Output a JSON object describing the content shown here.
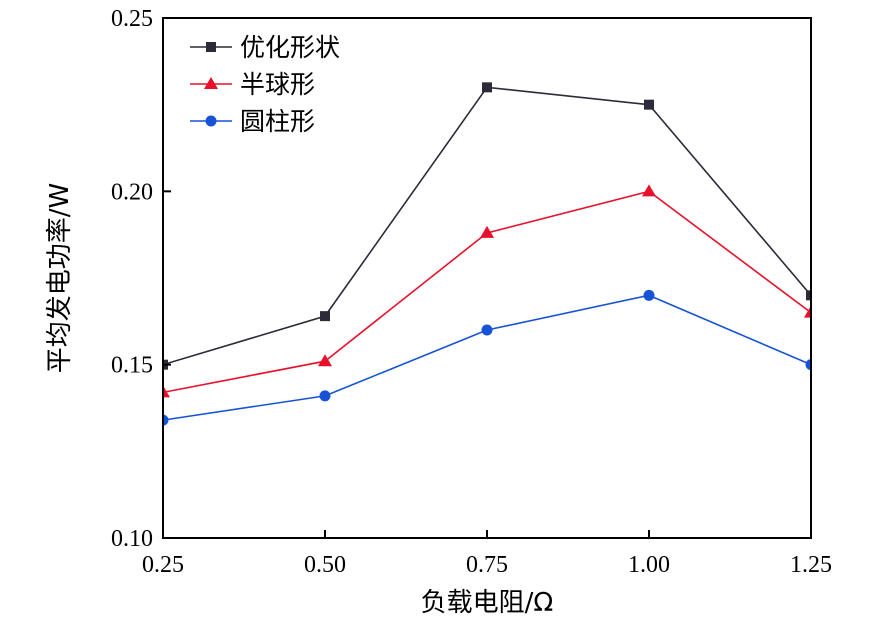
{
  "chart_data": {
    "type": "line",
    "title": "",
    "xlabel": "负载电阻/Ω",
    "ylabel": "平均发电功率/W",
    "x": [
      0.25,
      0.5,
      0.75,
      1.0,
      1.25
    ],
    "x_tick_labels": [
      "0.25",
      "0.50",
      "0.75",
      "1.00",
      "1.25"
    ],
    "y_tick_labels": [
      "0.10",
      "0.15",
      "0.20",
      "0.25"
    ],
    "y_ticks": [
      0.1,
      0.15,
      0.2,
      0.25
    ],
    "xlim": [
      0.25,
      1.25
    ],
    "ylim": [
      0.1,
      0.25
    ],
    "grid": false,
    "legend_position": "top-left",
    "series": [
      {
        "name": "优化形状",
        "marker": "square",
        "color": "#2b2b3a",
        "values": [
          0.15,
          0.164,
          0.23,
          0.225,
          0.17
        ]
      },
      {
        "name": "半球形",
        "marker": "triangle",
        "color": "#e8102a",
        "values": [
          0.142,
          0.151,
          0.188,
          0.2,
          0.165
        ]
      },
      {
        "name": "圆柱形",
        "marker": "circle",
        "color": "#1753d6",
        "values": [
          0.134,
          0.141,
          0.16,
          0.17,
          0.15
        ]
      }
    ]
  }
}
